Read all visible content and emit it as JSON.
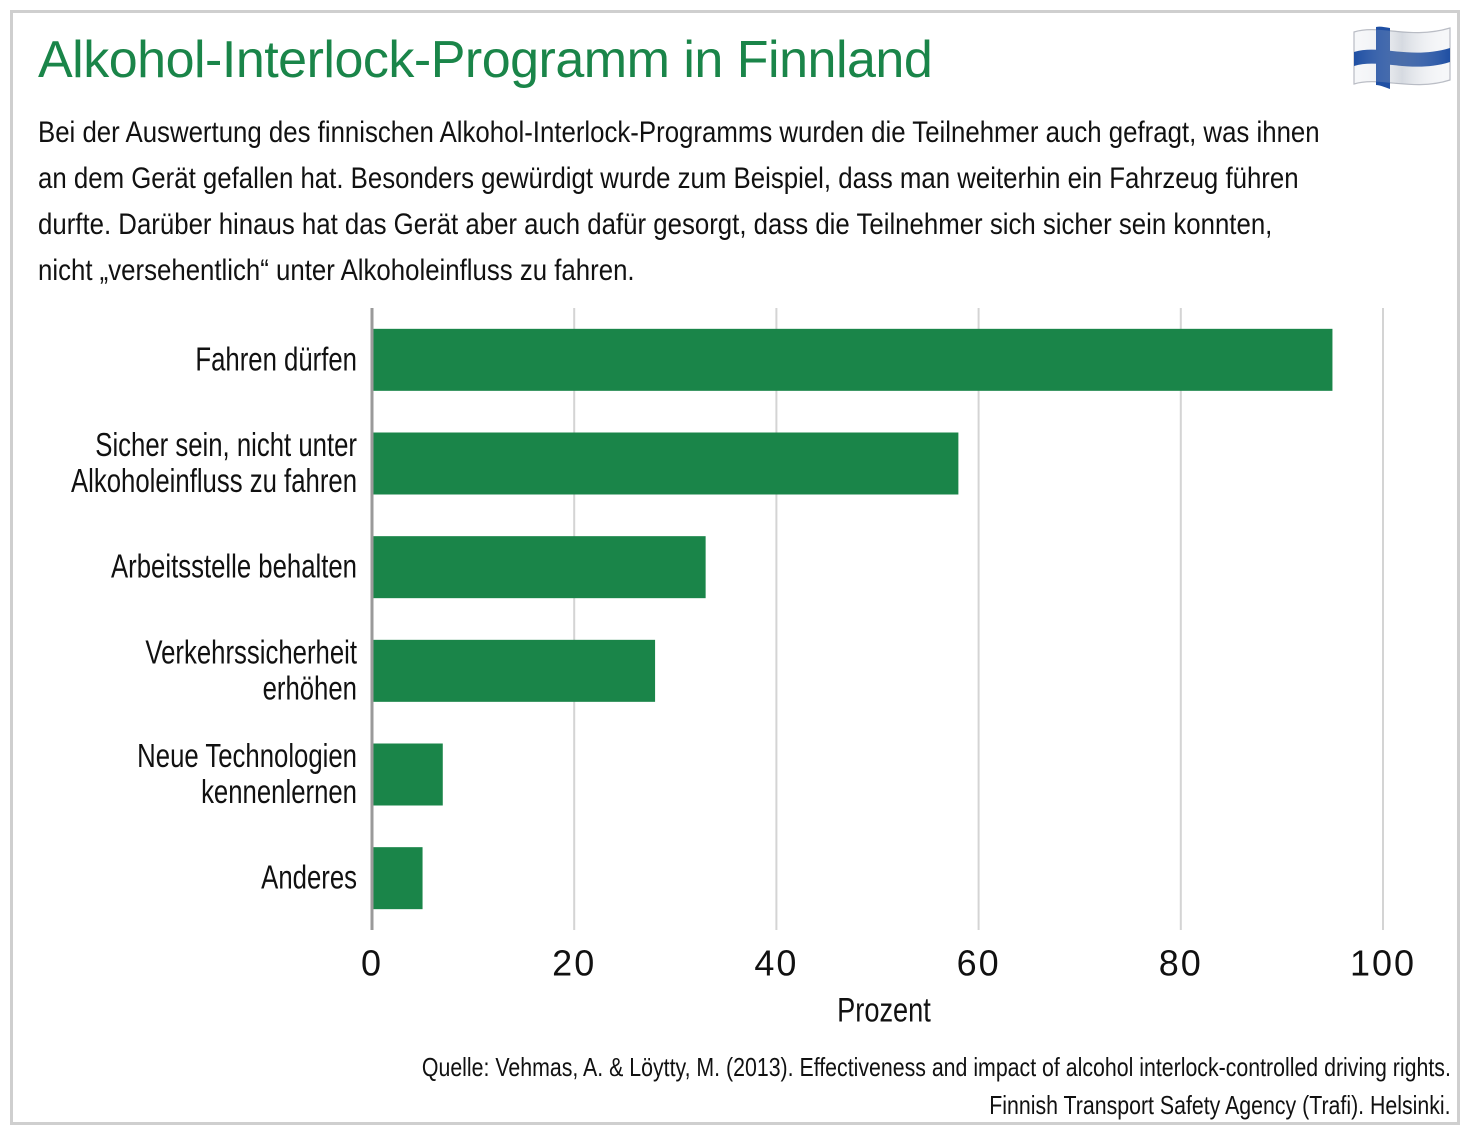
{
  "header": {
    "title": "Alkohol-Interlock-Programm in Finnland",
    "description_lines": [
      "Bei der Auswertung des finnischen Alkohol-Interlock-Programms wurden die Teilnehmer auch gefragt, was ihnen",
      "an dem Gerät gefallen hat. Besonders gewürdigt wurde zum Beispiel, dass man weiterhin ein Fahrzeug führen",
      "durfte. Darüber hinaus hat das Gerät aber auch dafür gesorgt, dass die Teilnehmer sich sicher sein konnten,",
      "nicht „versehentlich“ unter Alkoholeinfluss zu fahren."
    ],
    "flag_icon": "finland-flag-icon"
  },
  "chart_data": {
    "type": "bar",
    "orientation": "horizontal",
    "categories": [
      [
        "Fahren dürfen"
      ],
      [
        "Sicher sein, nicht unter",
        "Alkoholeinfluss zu fahren"
      ],
      [
        "Arbeitsstelle behalten"
      ],
      [
        "Verkehrssicherheit",
        "erhöhen"
      ],
      [
        "Neue Technologien",
        "kennenlernen"
      ],
      [
        "Anderes"
      ]
    ],
    "values": [
      95,
      58,
      33,
      28,
      7,
      5
    ],
    "xlabel": "Prozent",
    "xlim": [
      0,
      100
    ],
    "xticks": [
      "0",
      "20",
      "40",
      "60",
      "80",
      "100"
    ],
    "grid": true,
    "bar_color": "#1a8549",
    "grid_color": "#d4d4d4",
    "axis_color": "#9a9a9a"
  },
  "footer": {
    "source_line1": "Quelle: Vehmas, A. & Löytty, M. (2013). Effectiveness and impact of alcohol interlock-controlled driving rights.",
    "source_line2": "Finnish Transport Safety Agency (Trafi). Helsinki."
  },
  "colors": {
    "title": "#1a8549",
    "flag_blue": "#1f4fa3",
    "frame": "#cfcfcf"
  }
}
